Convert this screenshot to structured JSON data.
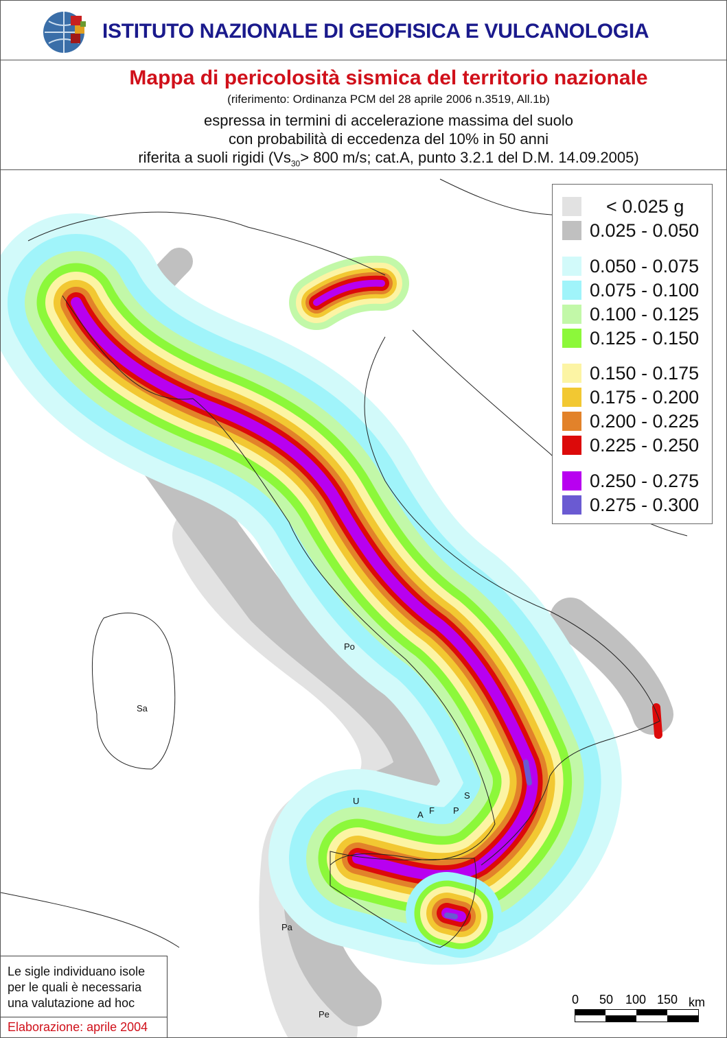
{
  "header": {
    "institute": "ISTITUTO NAZIONALE DI GEOFISICA E VULCANOLOGIA",
    "title": "Mappa di pericolosità sismica del territorio nazionale",
    "reference": "(riferimento: Ordinanza PCM del 28 aprile 2006 n.3519, All.1b)",
    "line1": "espressa in termini di accelerazione massima del suolo",
    "line2": "con probabilità di eccedenza del 10% in 50 anni",
    "line3_a": "riferita a suoli rigidi (Vs",
    "line3_sub": "30",
    "line3_b": "> 800 m/s; cat.A, punto 3.2.1 del D.M. 14.09.2005)"
  },
  "legend": {
    "items": [
      {
        "label": "< 0.025 g",
        "color": "#e2e2e2"
      },
      {
        "label": "0.025 - 0.050",
        "color": "#c0c0c0"
      },
      {
        "label": "0.050 - 0.075",
        "color": "#d2fafa"
      },
      {
        "label": "0.075 - 0.100",
        "color": "#a0f4fa"
      },
      {
        "label": "0.100 - 0.125",
        "color": "#c2f8a8"
      },
      {
        "label": "0.125 - 0.150",
        "color": "#8cf83a"
      },
      {
        "label": "0.150 - 0.175",
        "color": "#fcf4a4"
      },
      {
        "label": "0.175 - 0.200",
        "color": "#f2c832"
      },
      {
        "label": "0.200 - 0.225",
        "color": "#e2822a"
      },
      {
        "label": "0.225 - 0.250",
        "color": "#dc0a0a"
      },
      {
        "label": "0.250 - 0.275",
        "color": "#b800f0"
      },
      {
        "label": "0.275 - 0.300",
        "color": "#6a5ad2"
      }
    ]
  },
  "islands": {
    "po": "Po",
    "sa": "Sa",
    "u": "U",
    "a": "A",
    "f": "F",
    "p": "P",
    "s": "S",
    "pa": "Pa",
    "pe": "Pe"
  },
  "note": {
    "line1": "Le sigle individuano isole",
    "line2": "per le quali è necessaria",
    "line3": "una valutazione ad hoc",
    "credit": "Elaborazione: aprile 2004"
  },
  "scale": {
    "t0": "0",
    "t50": "50",
    "t100": "100",
    "t150": "150",
    "unit": "km"
  }
}
